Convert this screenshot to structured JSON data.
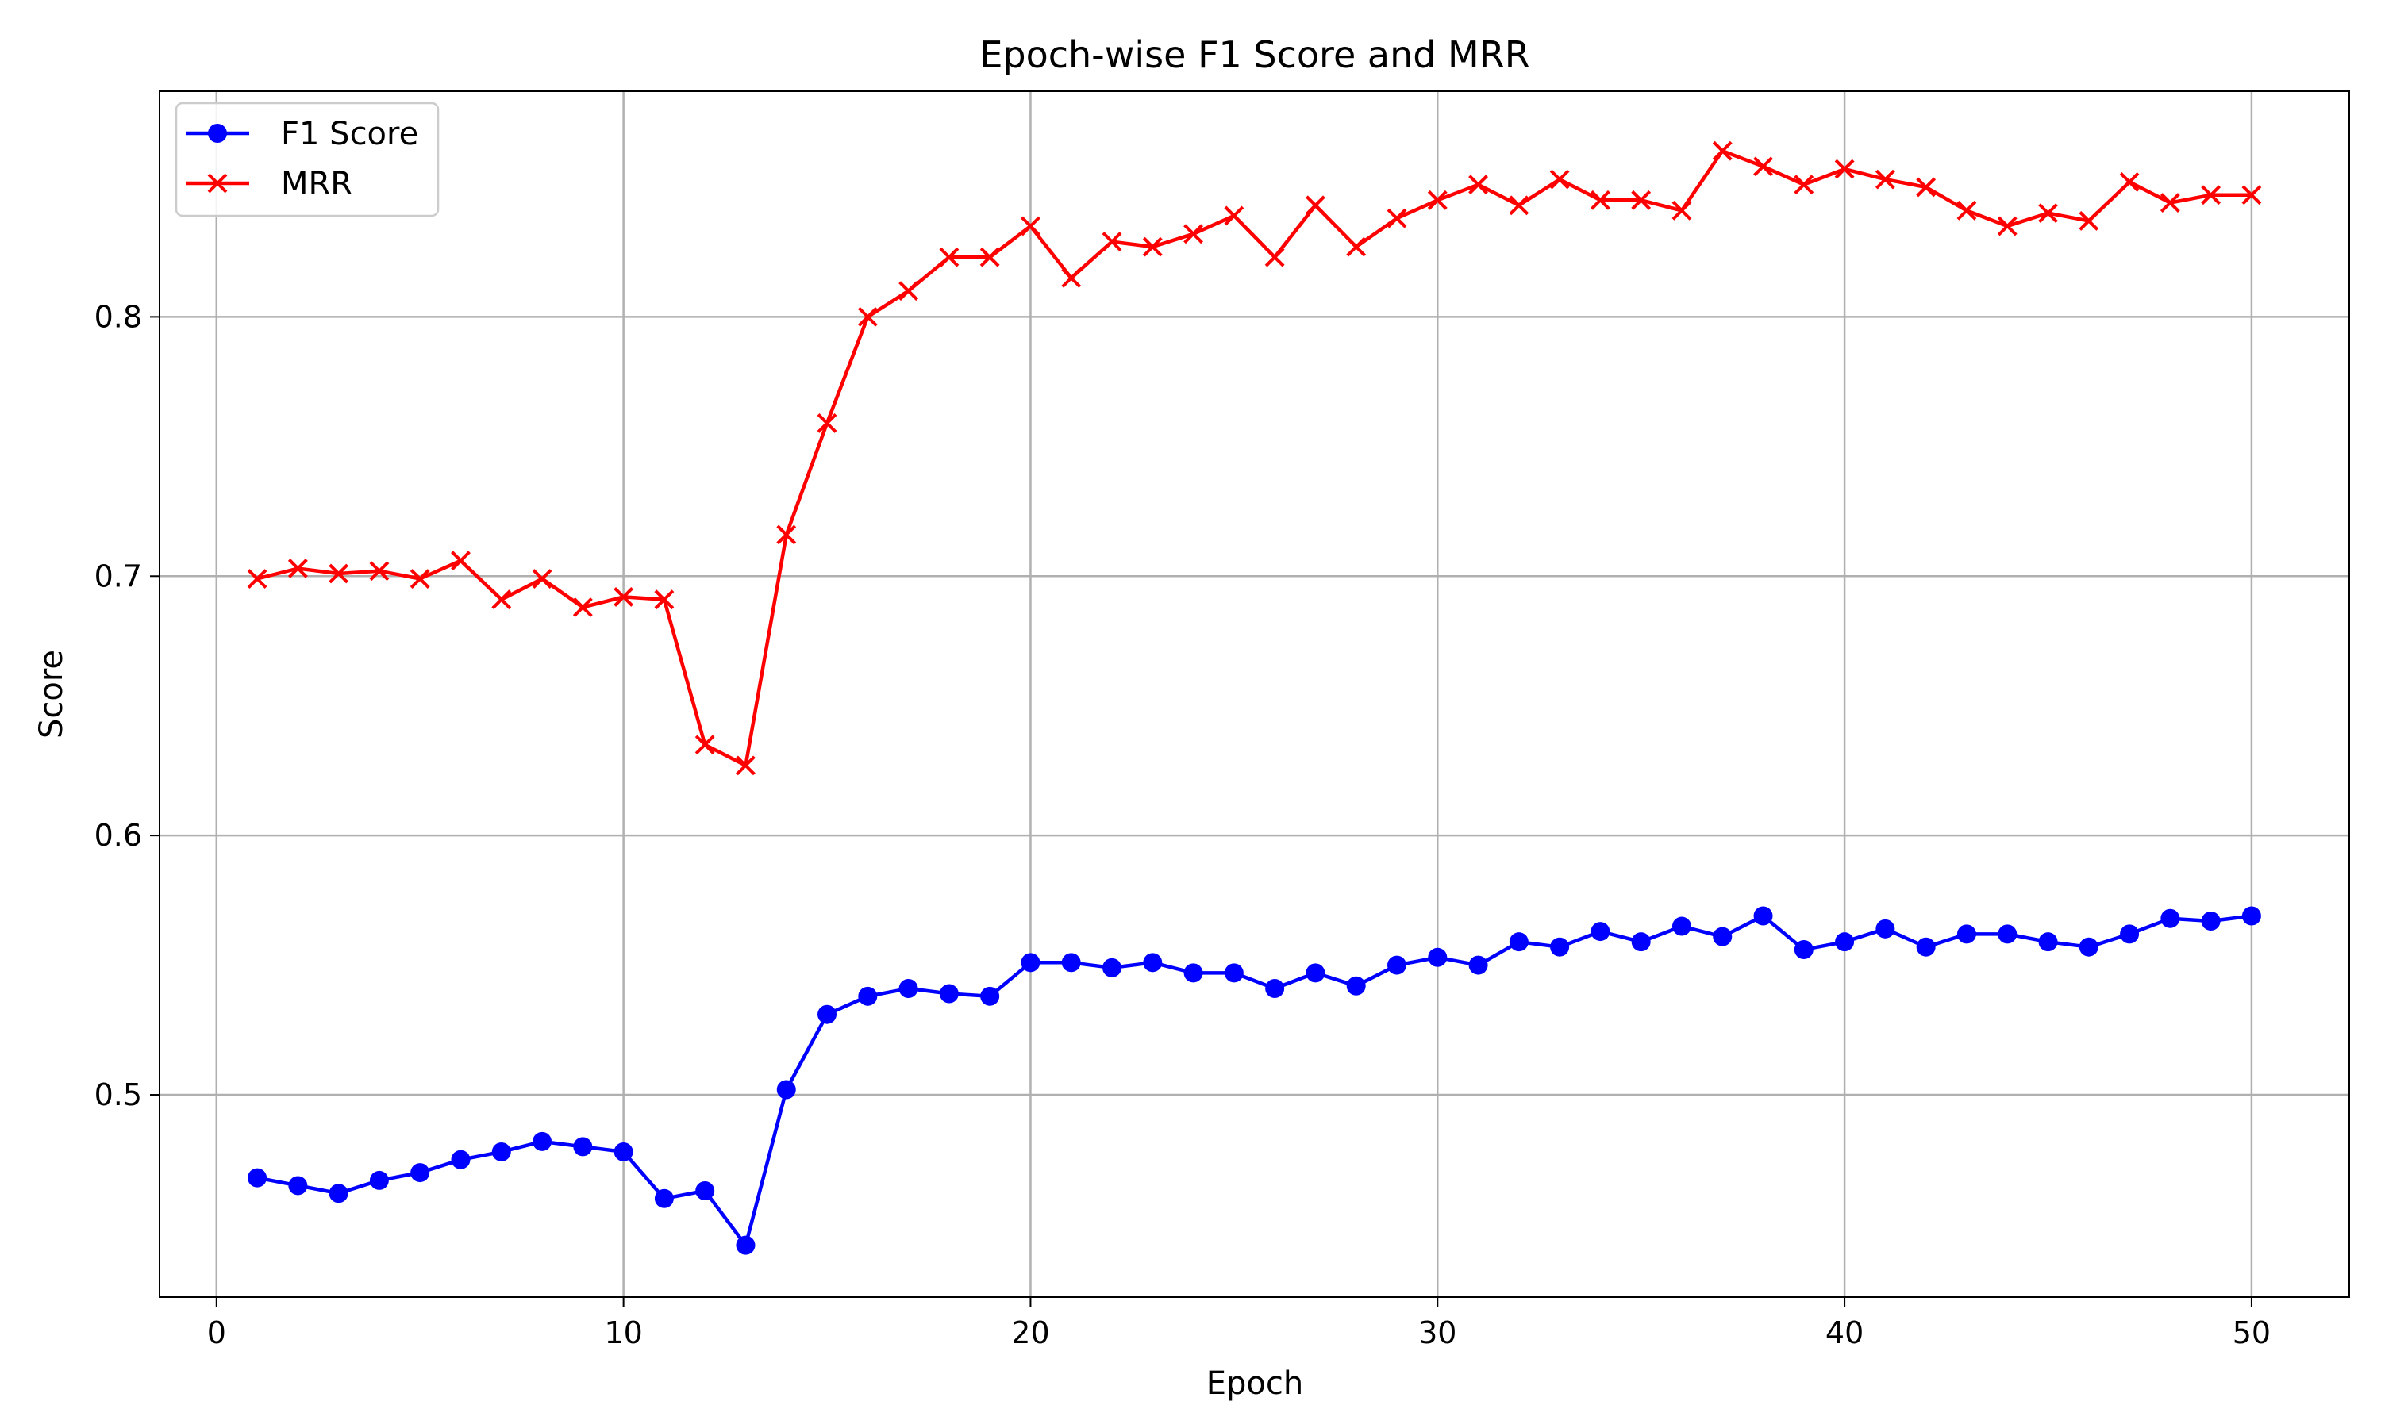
{
  "chart_data": {
    "type": "line",
    "title": "Epoch-wise F1 Score and MRR",
    "xlabel": "Epoch",
    "ylabel": "Score",
    "xlim": [
      -1.4,
      52.4
    ],
    "ylim": [
      0.422,
      0.887
    ],
    "xticks": [
      0,
      10,
      20,
      30,
      40,
      50
    ],
    "yticks": [
      0.5,
      0.6,
      0.7,
      0.8
    ],
    "grid": true,
    "legend_position": "top-left",
    "x": [
      1,
      2,
      3,
      4,
      5,
      6,
      7,
      8,
      9,
      10,
      11,
      12,
      13,
      14,
      15,
      16,
      17,
      18,
      19,
      20,
      21,
      22,
      23,
      24,
      25,
      26,
      27,
      28,
      29,
      30,
      31,
      32,
      33,
      34,
      35,
      36,
      37,
      38,
      39,
      40,
      41,
      42,
      43,
      44,
      45,
      46,
      47,
      48,
      49,
      50
    ],
    "series": [
      {
        "name": "F1 Score",
        "color": "#0000ff",
        "marker": "circle",
        "values": [
          0.468,
          0.465,
          0.462,
          0.467,
          0.47,
          0.475,
          0.478,
          0.482,
          0.48,
          0.478,
          0.46,
          0.463,
          0.442,
          0.502,
          0.531,
          0.538,
          0.541,
          0.539,
          0.538,
          0.551,
          0.551,
          0.549,
          0.551,
          0.547,
          0.547,
          0.541,
          0.547,
          0.542,
          0.55,
          0.553,
          0.55,
          0.559,
          0.557,
          0.563,
          0.559,
          0.565,
          0.561,
          0.569,
          0.556,
          0.559,
          0.564,
          0.557,
          0.562,
          0.562,
          0.559,
          0.557,
          0.562,
          0.568,
          0.567,
          0.569
        ]
      },
      {
        "name": "MRR",
        "color": "#ff0000",
        "marker": "x",
        "values": [
          0.699,
          0.703,
          0.701,
          0.702,
          0.699,
          0.706,
          0.691,
          0.699,
          0.688,
          0.692,
          0.691,
          0.635,
          0.627,
          0.716,
          0.759,
          0.8,
          0.81,
          0.823,
          0.823,
          0.835,
          0.815,
          0.829,
          0.827,
          0.832,
          0.839,
          0.823,
          0.843,
          0.827,
          0.838,
          0.845,
          0.851,
          0.843,
          0.853,
          0.845,
          0.845,
          0.841,
          0.864,
          0.858,
          0.851,
          0.857,
          0.853,
          0.85,
          0.841,
          0.835,
          0.84,
          0.837,
          0.852,
          0.844,
          0.847,
          0.847
        ]
      }
    ]
  }
}
